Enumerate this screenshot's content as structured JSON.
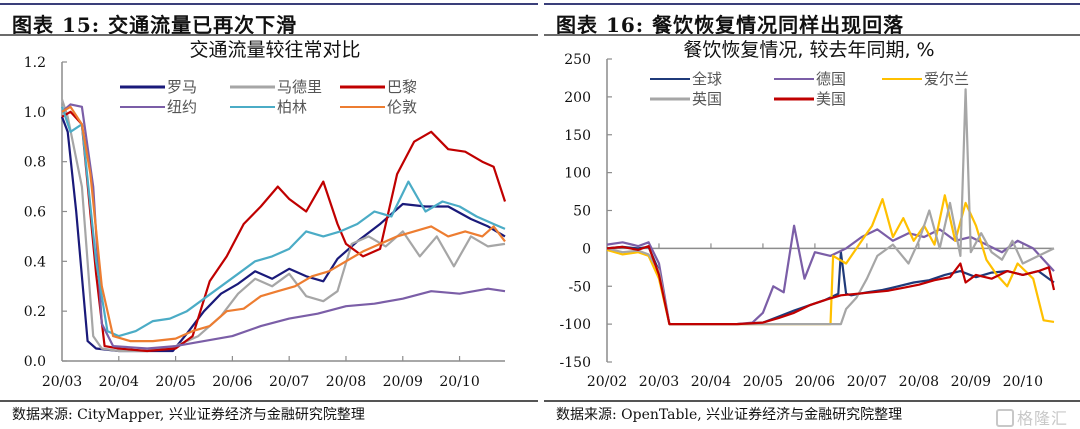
{
  "left": {
    "heading": "图表 15:  交通流量已再次下滑",
    "source": "数据来源:  CityMapper,  兴业证券经济与金融研究院整理"
  },
  "right": {
    "heading": "图表 16:  餐饮恢复情况同样出现回落",
    "source": "数据来源:  OpenTable,  兴业证券经济与金融研究院整理",
    "watermark": "格隆汇"
  },
  "chart_data": [
    {
      "type": "line",
      "title": "交通流量较往常对比",
      "xlabel": "",
      "ylabel": "",
      "ylim": [
        0,
        1.2
      ],
      "yticks": [
        "0.0",
        "0.2",
        "0.4",
        "0.6",
        "0.8",
        "1.0",
        "1.2"
      ],
      "xticks": [
        "20/03",
        "20/04",
        "20/05",
        "20/06",
        "20/07",
        "20/08",
        "20/09",
        "20/10"
      ],
      "xrange_months": [
        0,
        7.8
      ],
      "legend": "top",
      "series": [
        {
          "name": "罗马",
          "color": "#1a1a7a",
          "x": [
            0,
            0.1,
            0.25,
            0.45,
            0.6,
            1,
            1.5,
            1.95,
            2.2,
            2.5,
            2.8,
            3.1,
            3.4,
            3.7,
            4,
            4.3,
            4.6,
            4.85,
            5.2,
            5.6,
            6,
            6.4,
            6.8,
            7.2,
            7.5,
            7.8
          ],
          "y": [
            0.98,
            0.92,
            0.6,
            0.08,
            0.05,
            0.04,
            0.04,
            0.04,
            0.11,
            0.2,
            0.27,
            0.31,
            0.36,
            0.33,
            0.37,
            0.34,
            0.32,
            0.41,
            0.48,
            0.55,
            0.63,
            0.62,
            0.62,
            0.57,
            0.54,
            0.5
          ]
        },
        {
          "name": "马德里",
          "color": "#a6a6a6",
          "x": [
            0,
            0.1,
            0.35,
            0.55,
            0.7,
            1,
            1.5,
            2,
            2.4,
            2.8,
            3.1,
            3.4,
            3.7,
            4,
            4.3,
            4.6,
            4.85,
            5.1,
            5.4,
            5.7,
            6,
            6.3,
            6.6,
            6.9,
            7.2,
            7.5,
            7.8
          ],
          "y": [
            1.05,
            0.98,
            0.7,
            0.1,
            0.05,
            0.04,
            0.04,
            0.06,
            0.1,
            0.18,
            0.27,
            0.33,
            0.3,
            0.35,
            0.26,
            0.24,
            0.28,
            0.47,
            0.5,
            0.46,
            0.52,
            0.42,
            0.5,
            0.38,
            0.5,
            0.46,
            0.47
          ]
        },
        {
          "name": "巴黎",
          "color": "#c00000",
          "x": [
            0,
            0.15,
            0.35,
            0.6,
            0.75,
            1,
            1.5,
            2,
            2.3,
            2.6,
            2.9,
            3.2,
            3.5,
            3.8,
            4,
            4.3,
            4.6,
            4.85,
            5,
            5.3,
            5.6,
            5.9,
            6.2,
            6.5,
            6.8,
            7.1,
            7.4,
            7.6,
            7.8
          ],
          "y": [
            0.98,
            1.0,
            0.95,
            0.35,
            0.06,
            0.05,
            0.04,
            0.05,
            0.1,
            0.32,
            0.42,
            0.55,
            0.62,
            0.7,
            0.65,
            0.6,
            0.72,
            0.55,
            0.47,
            0.42,
            0.45,
            0.75,
            0.88,
            0.92,
            0.85,
            0.84,
            0.8,
            0.78,
            0.64
          ]
        },
        {
          "name": "纽约",
          "color": "#7b5ea7",
          "x": [
            0,
            0.15,
            0.35,
            0.55,
            0.7,
            0.9,
            1.5,
            2,
            2.5,
            3,
            3.5,
            4,
            4.5,
            5,
            5.5,
            6,
            6.5,
            7,
            7.5,
            7.8
          ],
          "y": [
            1.0,
            1.03,
            1.02,
            0.7,
            0.15,
            0.06,
            0.05,
            0.06,
            0.08,
            0.1,
            0.14,
            0.17,
            0.19,
            0.22,
            0.23,
            0.25,
            0.28,
            0.27,
            0.29,
            0.28
          ]
        },
        {
          "name": "柏林",
          "color": "#4bacc6",
          "x": [
            0,
            0.15,
            0.35,
            0.6,
            0.8,
            1,
            1.3,
            1.6,
            1.9,
            2.2,
            2.5,
            2.8,
            3.1,
            3.4,
            3.7,
            4,
            4.3,
            4.6,
            4.9,
            5.2,
            5.5,
            5.8,
            6.1,
            6.4,
            6.7,
            7,
            7.3,
            7.6,
            7.8
          ],
          "y": [
            1.02,
            0.92,
            0.95,
            0.4,
            0.12,
            0.1,
            0.12,
            0.16,
            0.17,
            0.2,
            0.25,
            0.3,
            0.35,
            0.4,
            0.42,
            0.45,
            0.52,
            0.5,
            0.52,
            0.55,
            0.6,
            0.58,
            0.72,
            0.6,
            0.64,
            0.62,
            0.58,
            0.55,
            0.53
          ]
        },
        {
          "name": "伦敦",
          "color": "#ed7d31",
          "x": [
            0,
            0.15,
            0.35,
            0.5,
            0.7,
            0.9,
            1.2,
            1.6,
            2,
            2.3,
            2.6,
            2.9,
            3.2,
            3.5,
            3.8,
            4.1,
            4.4,
            4.7,
            5,
            5.3,
            5.6,
            5.9,
            6.2,
            6.5,
            6.8,
            7.1,
            7.4,
            7.6,
            7.8
          ],
          "y": [
            1.0,
            1.02,
            0.95,
            0.75,
            0.3,
            0.1,
            0.08,
            0.08,
            0.09,
            0.12,
            0.14,
            0.2,
            0.21,
            0.26,
            0.28,
            0.3,
            0.34,
            0.36,
            0.4,
            0.44,
            0.47,
            0.5,
            0.52,
            0.54,
            0.5,
            0.52,
            0.5,
            0.54,
            0.48
          ]
        }
      ]
    },
    {
      "type": "line",
      "title": "餐饮恢复情况, 较去年同期, %",
      "xlabel": "",
      "ylabel": "",
      "ylim": [
        -150,
        250
      ],
      "yticks": [
        "-150",
        "-100",
        "-50",
        "0",
        "50",
        "100",
        "150",
        "200",
        "250"
      ],
      "xticks": [
        "20/02",
        "20/03",
        "20/04",
        "20/05",
        "20/06",
        "20/07",
        "20/08",
        "20/09",
        "20/10"
      ],
      "xrange_months": [
        0,
        8.6
      ],
      "legend": "top",
      "series": [
        {
          "name": "全球",
          "color": "#1f3a7a",
          "x": [
            0,
            0.3,
            0.6,
            0.8,
            1,
            1.2,
            1.5,
            2,
            2.5,
            3,
            3.3,
            3.6,
            3.9,
            4.2,
            4.45,
            4.5,
            4.6,
            4.7,
            5,
            5.3,
            5.6,
            5.9,
            6.2,
            6.5,
            6.8,
            7.1,
            7.4,
            7.7,
            8,
            8.3,
            8.6
          ],
          "y": [
            0,
            2,
            0,
            2,
            -30,
            -100,
            -100,
            -100,
            -100,
            -98,
            -90,
            -82,
            -75,
            -68,
            -60,
            -5,
            -60,
            -62,
            -58,
            -55,
            -50,
            -45,
            -42,
            -35,
            -30,
            -38,
            -32,
            -30,
            -35,
            -30,
            -45
          ]
        },
        {
          "name": "德国",
          "color": "#7b5ea7",
          "x": [
            0,
            0.3,
            0.6,
            0.8,
            1,
            1.2,
            1.5,
            2,
            2.5,
            2.8,
            3,
            3.2,
            3.4,
            3.6,
            3.8,
            4,
            4.3,
            4.6,
            4.9,
            5.2,
            5.5,
            5.8,
            6.1,
            6.4,
            6.7,
            7,
            7.3,
            7.6,
            7.9,
            8.2,
            8.6
          ],
          "y": [
            5,
            8,
            3,
            8,
            -20,
            -100,
            -100,
            -100,
            -100,
            -98,
            -85,
            -50,
            -58,
            30,
            -40,
            -5,
            -10,
            0,
            15,
            25,
            10,
            20,
            15,
            25,
            10,
            15,
            5,
            -5,
            10,
            0,
            -30
          ]
        },
        {
          "name": "爱尔兰",
          "color": "#ffc000",
          "x": [
            0,
            0.3,
            0.6,
            0.8,
            1,
            1.2,
            1.5,
            2,
            2.5,
            3,
            3.5,
            4,
            4.3,
            4.35,
            4.6,
            4.9,
            5.1,
            5.3,
            5.5,
            5.7,
            5.9,
            6.1,
            6.3,
            6.5,
            6.7,
            6.9,
            7.1,
            7.3,
            7.5,
            7.7,
            7.9,
            8.2,
            8.4,
            8.6
          ],
          "y": [
            -2,
            -8,
            -5,
            -10,
            -40,
            -100,
            -100,
            -100,
            -100,
            -100,
            -100,
            -100,
            -100,
            -10,
            -20,
            10,
            30,
            65,
            15,
            40,
            10,
            30,
            5,
            70,
            10,
            60,
            30,
            -15,
            -35,
            -50,
            -20,
            -40,
            -95,
            -97
          ]
        },
        {
          "name": "英国",
          "color": "#a6a6a6",
          "x": [
            0,
            0.3,
            0.6,
            0.8,
            1,
            1.2,
            1.5,
            2,
            2.5,
            3,
            3.5,
            4,
            4.5,
            4.6,
            4.8,
            5,
            5.2,
            5.5,
            5.8,
            6,
            6.2,
            6.4,
            6.6,
            6.8,
            6.9,
            7,
            7.2,
            7.4,
            7.6,
            7.8,
            8,
            8.3,
            8.6
          ],
          "y": [
            0,
            -5,
            -3,
            -8,
            -30,
            -100,
            -100,
            -100,
            -100,
            -100,
            -100,
            -100,
            -100,
            -80,
            -65,
            -40,
            -10,
            5,
            -20,
            10,
            50,
            0,
            60,
            -10,
            210,
            -5,
            20,
            -5,
            -15,
            10,
            -20,
            -10,
            0
          ]
        },
        {
          "name": "美国",
          "color": "#c00000",
          "x": [
            0,
            0.3,
            0.6,
            0.8,
            1,
            1.2,
            1.5,
            2,
            2.5,
            3,
            3.3,
            3.6,
            3.9,
            4.2,
            4.5,
            4.8,
            5.1,
            5.4,
            5.7,
            6,
            6.3,
            6.6,
            6.8,
            6.9,
            7.1,
            7.4,
            7.7,
            8,
            8.3,
            8.5,
            8.6
          ],
          "y": [
            0,
            2,
            -2,
            3,
            -35,
            -100,
            -100,
            -100,
            -100,
            -98,
            -92,
            -85,
            -75,
            -68,
            -62,
            -60,
            -58,
            -56,
            -52,
            -48,
            -42,
            -38,
            -20,
            -45,
            -35,
            -40,
            -30,
            -35,
            -30,
            -25,
            -55
          ]
        }
      ]
    }
  ]
}
